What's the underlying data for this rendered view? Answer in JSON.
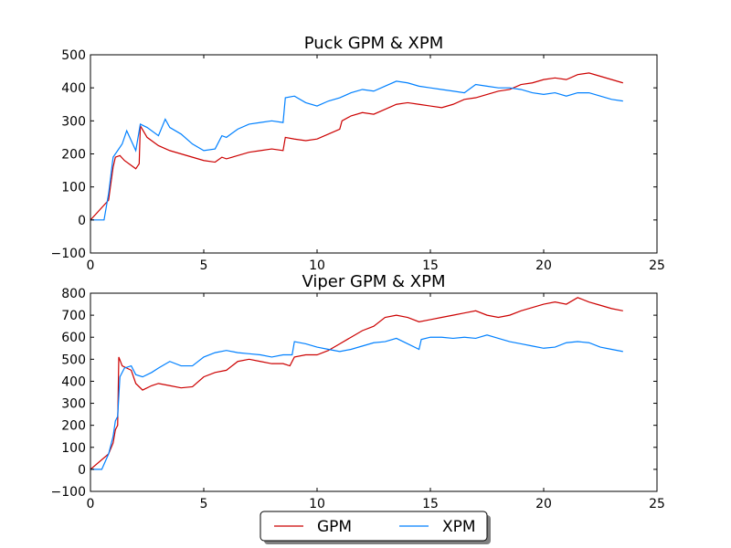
{
  "legend": {
    "items": [
      {
        "label": "GPM",
        "color": "#cc0000"
      },
      {
        "label": "XPM",
        "color": "#0080ff"
      }
    ]
  },
  "chart_data": [
    {
      "type": "line",
      "title": "Puck GPM & XPM",
      "xlabel": "",
      "ylabel": "",
      "xlim": [
        0,
        25
      ],
      "ylim": [
        -100,
        500
      ],
      "xticks": [
        "0",
        "5",
        "10",
        "15",
        "20",
        "25"
      ],
      "yticks": [
        "−100",
        "0",
        "100",
        "200",
        "300",
        "400",
        "500"
      ],
      "grid": false,
      "series": [
        {
          "name": "GPM",
          "color": "#cc0000",
          "x": [
            0,
            0.8,
            1.0,
            1.1,
            1.3,
            1.5,
            1.8,
            2.0,
            2.15,
            2.2,
            2.5,
            3.0,
            3.5,
            4.0,
            4.5,
            5.0,
            5.5,
            5.8,
            6.0,
            6.5,
            7.0,
            7.5,
            8.0,
            8.5,
            8.6,
            9.0,
            9.5,
            10.0,
            10.5,
            11.0,
            11.1,
            11.5,
            12.0,
            12.5,
            13.0,
            13.5,
            14.0,
            14.5,
            15.0,
            15.5,
            16.0,
            16.5,
            17.0,
            17.5,
            18.0,
            18.5,
            19.0,
            19.5,
            20.0,
            20.5,
            21.0,
            21.5,
            22.0,
            22.5,
            23.0,
            23.5
          ],
          "y": [
            0,
            60,
            160,
            190,
            195,
            180,
            165,
            155,
            170,
            285,
            250,
            225,
            210,
            200,
            190,
            180,
            175,
            190,
            185,
            195,
            205,
            210,
            215,
            210,
            250,
            245,
            240,
            245,
            260,
            275,
            300,
            315,
            325,
            320,
            335,
            350,
            355,
            350,
            345,
            340,
            350,
            365,
            370,
            380,
            390,
            395,
            410,
            415,
            425,
            430,
            425,
            440,
            445,
            435,
            425,
            415
          ]
        },
        {
          "name": "XPM",
          "color": "#0080ff",
          "x": [
            0,
            0.6,
            0.8,
            1.0,
            1.2,
            1.4,
            1.6,
            1.8,
            2.0,
            2.2,
            2.5,
            3.0,
            3.3,
            3.5,
            4.0,
            4.5,
            5.0,
            5.5,
            5.8,
            6.0,
            6.5,
            7.0,
            7.5,
            8.0,
            8.5,
            8.6,
            9.0,
            9.5,
            10.0,
            10.5,
            11.0,
            11.5,
            12.0,
            12.5,
            13.0,
            13.5,
            14.0,
            14.5,
            15.0,
            15.5,
            16.0,
            16.5,
            17.0,
            17.5,
            18.0,
            18.5,
            19.0,
            19.5,
            20.0,
            20.5,
            21.0,
            21.5,
            22.0,
            22.5,
            23.0,
            23.5
          ],
          "y": [
            0,
            0,
            80,
            190,
            210,
            230,
            270,
            240,
            210,
            290,
            280,
            255,
            305,
            280,
            260,
            230,
            210,
            215,
            255,
            250,
            275,
            290,
            295,
            300,
            295,
            370,
            375,
            355,
            345,
            360,
            370,
            385,
            395,
            390,
            405,
            420,
            415,
            405,
            400,
            395,
            390,
            385,
            410,
            405,
            400,
            400,
            395,
            385,
            380,
            385,
            375,
            385,
            385,
            375,
            365,
            360
          ]
        }
      ]
    },
    {
      "type": "line",
      "title": "Viper GPM & XPM",
      "xlabel": "",
      "ylabel": "",
      "xlim": [
        0,
        25
      ],
      "ylim": [
        -100,
        800
      ],
      "xticks": [
        "0",
        "5",
        "10",
        "15",
        "20",
        "25"
      ],
      "yticks": [
        "−100",
        "0",
        "100",
        "200",
        "300",
        "400",
        "500",
        "600",
        "700",
        "800"
      ],
      "grid": false,
      "series": [
        {
          "name": "GPM",
          "color": "#cc0000",
          "x": [
            0,
            0.8,
            1.0,
            1.1,
            1.2,
            1.25,
            1.4,
            1.6,
            1.8,
            2.0,
            2.3,
            2.7,
            3.0,
            3.5,
            4.0,
            4.5,
            5.0,
            5.5,
            6.0,
            6.5,
            7.0,
            7.5,
            8.0,
            8.5,
            8.8,
            9.0,
            9.5,
            10.0,
            10.5,
            11.0,
            11.5,
            12.0,
            12.5,
            13.0,
            13.5,
            14.0,
            14.5,
            15.0,
            15.5,
            16.0,
            16.5,
            17.0,
            17.5,
            18.0,
            18.5,
            19.0,
            19.5,
            20.0,
            20.5,
            21.0,
            21.5,
            22.0,
            22.5,
            23.0,
            23.5
          ],
          "y": [
            0,
            70,
            120,
            180,
            200,
            510,
            470,
            460,
            450,
            390,
            360,
            380,
            390,
            380,
            370,
            375,
            420,
            440,
            450,
            490,
            500,
            490,
            480,
            480,
            470,
            510,
            520,
            520,
            540,
            570,
            600,
            630,
            650,
            690,
            700,
            690,
            670,
            680,
            690,
            700,
            710,
            720,
            700,
            690,
            700,
            720,
            735,
            750,
            760,
            750,
            780,
            760,
            745,
            730,
            720
          ]
        },
        {
          "name": "XPM",
          "color": "#0080ff",
          "x": [
            0,
            0.5,
            0.8,
            1.0,
            1.1,
            1.2,
            1.3,
            1.5,
            1.8,
            2.0,
            2.3,
            2.7,
            3.0,
            3.5,
            4.0,
            4.5,
            5.0,
            5.5,
            6.0,
            6.5,
            7.0,
            7.5,
            8.0,
            8.5,
            8.9,
            9.0,
            9.5,
            10.0,
            10.5,
            11.0,
            11.5,
            12.0,
            12.5,
            13.0,
            13.5,
            14.0,
            14.5,
            14.6,
            15.0,
            15.5,
            16.0,
            16.5,
            17.0,
            17.5,
            18.0,
            18.5,
            19.0,
            19.5,
            20.0,
            20.5,
            21.0,
            21.5,
            22.0,
            22.5,
            23.0,
            23.5
          ],
          "y": [
            0,
            0,
            70,
            150,
            220,
            240,
            420,
            460,
            470,
            430,
            420,
            440,
            460,
            490,
            470,
            470,
            510,
            530,
            540,
            530,
            525,
            520,
            510,
            520,
            520,
            580,
            570,
            555,
            545,
            535,
            545,
            560,
            575,
            580,
            595,
            570,
            545,
            590,
            600,
            600,
            595,
            600,
            595,
            610,
            595,
            580,
            570,
            560,
            550,
            555,
            575,
            580,
            575,
            555,
            545,
            535
          ]
        }
      ]
    }
  ]
}
